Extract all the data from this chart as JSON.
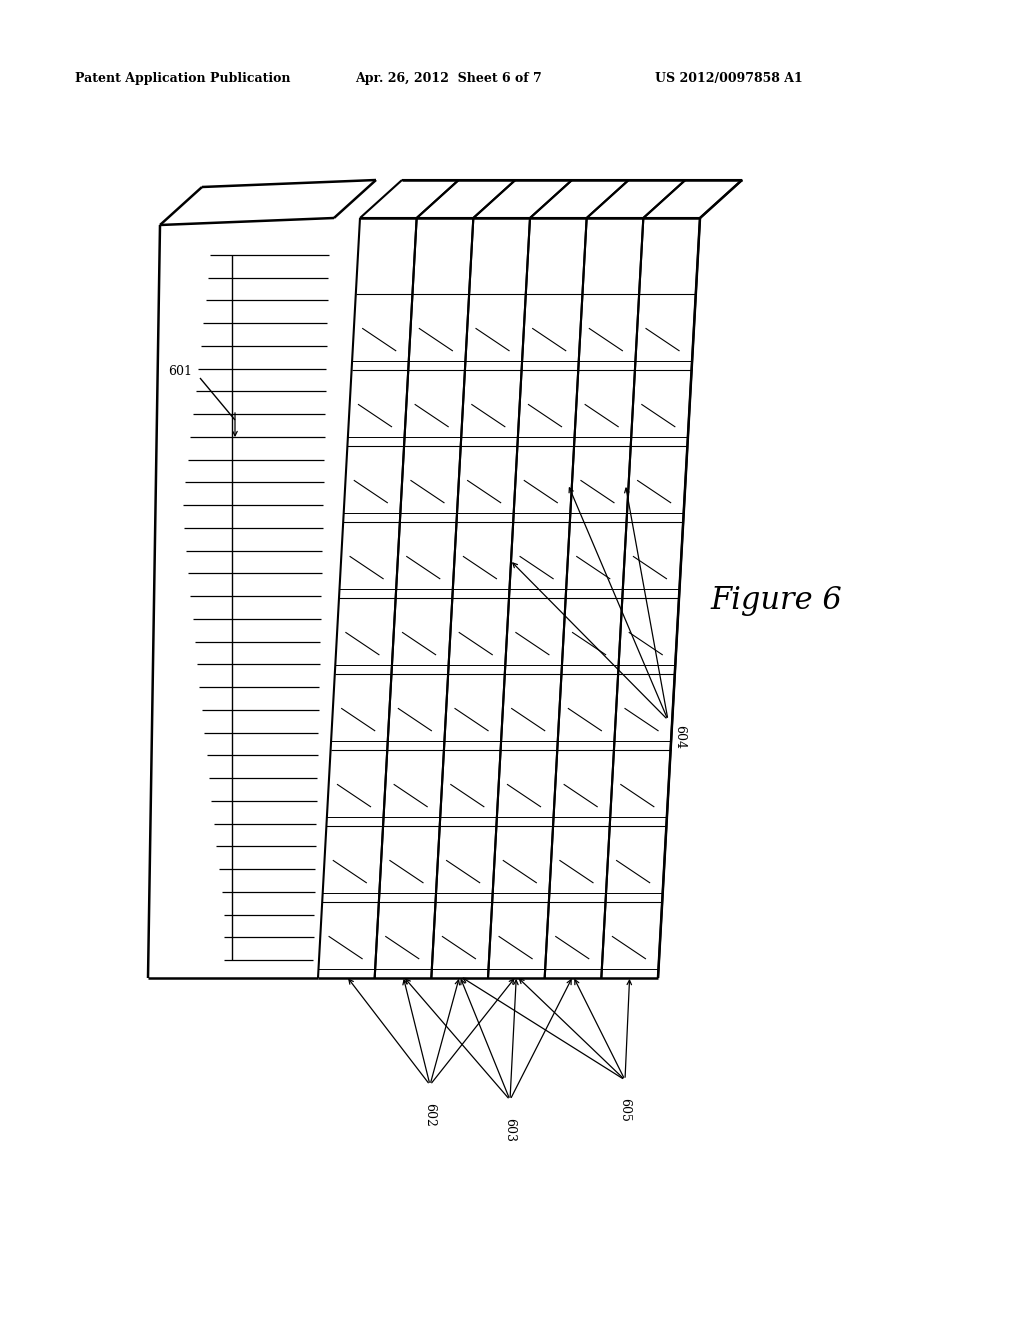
{
  "header_left": "Patent Application Publication",
  "header_mid": "Apr. 26, 2012  Sheet 6 of 7",
  "header_right": "US 2012/0097858 A1",
  "figure_label": "Figure 6",
  "bg_color": "#ffffff",
  "line_color": "#000000"
}
